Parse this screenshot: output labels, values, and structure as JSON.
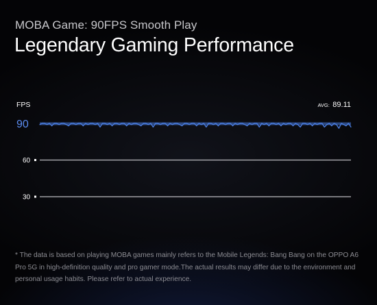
{
  "subtitle": "MOBA Game: 90FPS Smooth Play",
  "title": "Legendary Gaming Performance",
  "footnote": "* The data is based on playing MOBA games mainly refers to the Mobile Legends: Bang Bang on the OPPO A6 Pro 5G in high-definition quality and pro gamer mode.The actual results may differ due to the environment and personal usage habits. Please refer to actual experience.",
  "colors": {
    "line": "#4a7de0",
    "accent_tick": "#5b8cf0",
    "grid": "#bfbfc4",
    "muted_text": "#8d8d93"
  },
  "chart_data": {
    "type": "line",
    "ylabel": "FPS",
    "yticks": [
      90,
      60,
      30
    ],
    "highlight_tick": 90,
    "ylim": [
      30,
      90
    ],
    "avg_label": "AVG:",
    "avg_value": "89.11",
    "grid": true,
    "series": [
      {
        "values": [
          89,
          90,
          90,
          89,
          90,
          88,
          90,
          90,
          89,
          90,
          90,
          89,
          88,
          90,
          90,
          89,
          90,
          90,
          88,
          90,
          89,
          90,
          90,
          89,
          90,
          87,
          90,
          90,
          89,
          90,
          88,
          90,
          90,
          89,
          90,
          90,
          88,
          90,
          89,
          90,
          90,
          89,
          88,
          90,
          90,
          89,
          90,
          87,
          90,
          90,
          89,
          90,
          90,
          88,
          90,
          89,
          90,
          90,
          89,
          88,
          90,
          90,
          89,
          90,
          90,
          88,
          90,
          89,
          90,
          87,
          90,
          90,
          89,
          90,
          88,
          90,
          90,
          89,
          90,
          90,
          88,
          90,
          89,
          90,
          90,
          89,
          88,
          90,
          89,
          90,
          90,
          87,
          90,
          89,
          90,
          88,
          90,
          90,
          89,
          90,
          88,
          90,
          89,
          90,
          90,
          88,
          90,
          89,
          87,
          90,
          90,
          89,
          90,
          88,
          90,
          89,
          90,
          90,
          87,
          89,
          90,
          88,
          90,
          89,
          86,
          90,
          89,
          88,
          90,
          87
        ]
      }
    ]
  }
}
